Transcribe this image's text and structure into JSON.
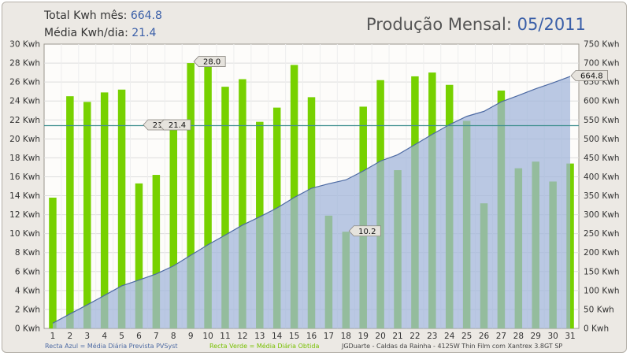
{
  "header": {
    "total_label": "Total Kwh mês:",
    "total_value": "664.8",
    "avg_label": "Média Kwh/dia:",
    "avg_value": "21.4",
    "title_label": "Produção Mensal:",
    "title_value": "05/2011"
  },
  "footer": {
    "blue_legend": "Recta Azul = Média Diária Prevista PVSyst",
    "green_legend": "Recta Verde = Média Diária Obtida",
    "credits": "JGDuarte  -  Caldas da Rainha  -  4125W Thin Film com Xantrex 3.8GT SP"
  },
  "colors": {
    "bar": "#77d100",
    "area": "#9fb4d9",
    "area_line": "#4d6aa3",
    "hline": "#3f8f8f",
    "plot_bg": "#fdfcfa",
    "grid": "#dddddd"
  },
  "chart_data": {
    "type": "bar",
    "categories": [
      "1",
      "2",
      "3",
      "4",
      "5",
      "6",
      "7",
      "8",
      "9",
      "10",
      "11",
      "12",
      "13",
      "14",
      "15",
      "16",
      "17",
      "18",
      "19",
      "20",
      "21",
      "22",
      "23",
      "24",
      "25",
      "26",
      "27",
      "28",
      "29",
      "30",
      "31"
    ],
    "series": [
      {
        "type": "bar",
        "axis": "left",
        "values": [
          13.8,
          24.5,
          23.9,
          24.9,
          25.2,
          15.3,
          16.2,
          21.1,
          28.0,
          27.8,
          25.5,
          26.3,
          21.8,
          23.3,
          27.8,
          24.4,
          11.9,
          10.2,
          23.4,
          26.2,
          16.7,
          26.6,
          27.0,
          25.7,
          21.9,
          13.2,
          25.1,
          16.9,
          17.6,
          15.5,
          17.4
        ]
      },
      {
        "type": "area",
        "axis": "right",
        "values": [
          13.8,
          38.3,
          62.2,
          87.1,
          112.3,
          127.6,
          143.8,
          164.9,
          192.9,
          220.7,
          246.2,
          272.5,
          294.3,
          317.6,
          345.4,
          369.8,
          381.7,
          391.9,
          415.3,
          441.5,
          458.2,
          484.8,
          511.8,
          537.5,
          559.4,
          572.6,
          597.7,
          614.6,
          632.2,
          647.7,
          664.8
        ]
      }
    ],
    "hline": {
      "value": 21.4,
      "axis": "left"
    },
    "annotations": {
      "max_label": "28.0",
      "min_label": "10.2",
      "avg_label_left": "21.",
      "avg_label_right": "21.4",
      "total_label": "664.8"
    },
    "y_left": {
      "min": 0,
      "max": 30,
      "step": 2,
      "unit": "Kwh"
    },
    "y_right": {
      "min": 0,
      "max": 750,
      "step": 50,
      "unit": "Kwh"
    },
    "grid": true
  }
}
